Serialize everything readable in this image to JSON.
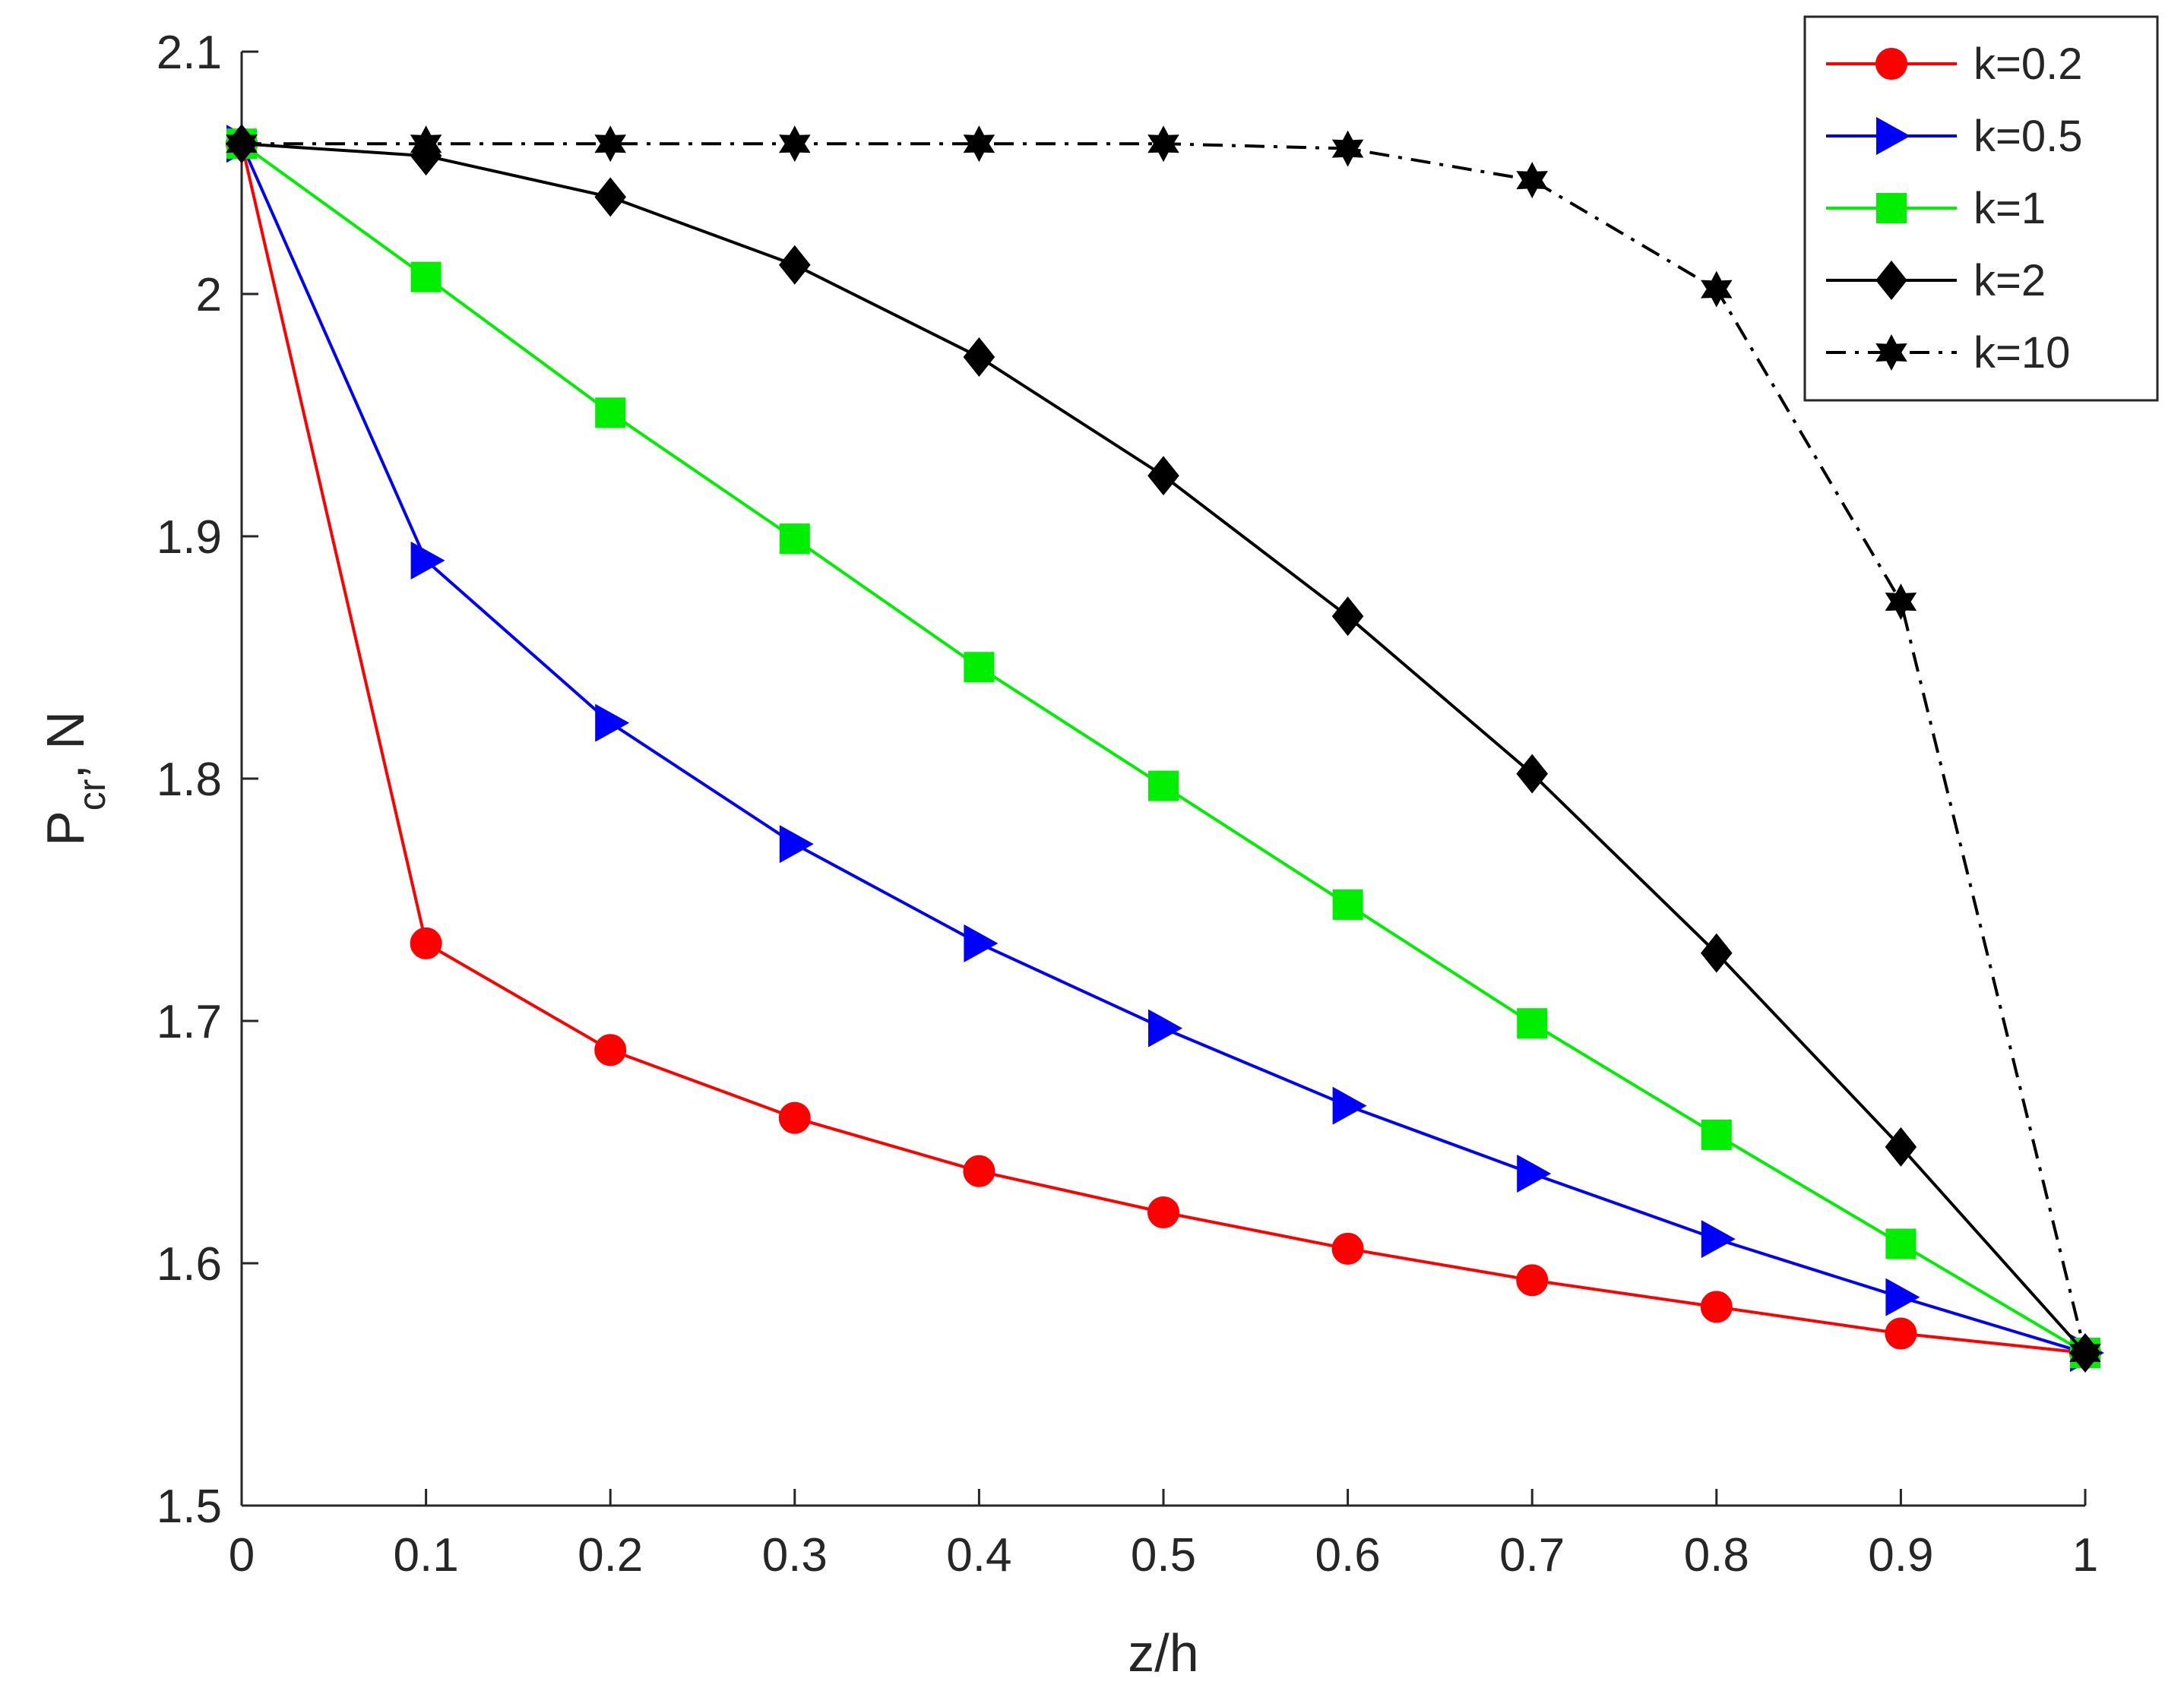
{
  "chart_data": {
    "type": "line",
    "xlabel": "z/h",
    "ylabel": {
      "main": "P",
      "sub": "cr",
      "suffix": ", N"
    },
    "xlim": [
      0,
      1
    ],
    "ylim": [
      1.5,
      2.1
    ],
    "xticks": [
      0,
      0.1,
      0.2,
      0.3,
      0.4,
      0.5,
      0.6,
      0.7,
      0.8,
      0.9,
      1
    ],
    "xtick_labels": [
      "0",
      "0.1",
      "0.2",
      "0.3",
      "0.4",
      "0.5",
      "0.6",
      "0.7",
      "0.8",
      "0.9",
      "1"
    ],
    "yticks": [
      1.5,
      1.6,
      1.7,
      1.8,
      1.9,
      2.0,
      2.1
    ],
    "ytick_labels": [
      "1.5",
      "1.6",
      "1.7",
      "1.8",
      "1.9",
      "2",
      "2.1"
    ],
    "grid": false,
    "legend_position": "top-right",
    "x": [
      0,
      0.1,
      0.2,
      0.3,
      0.4,
      0.5,
      0.6,
      0.7,
      0.8,
      0.9,
      1
    ],
    "series": [
      {
        "name": "k=0.2",
        "color": "#ff0000",
        "marker": "circle",
        "line": "solid",
        "values": [
          2.062,
          1.732,
          1.688,
          1.66,
          1.638,
          1.621,
          1.606,
          1.593,
          1.582,
          1.571,
          1.563
        ]
      },
      {
        "name": "k=0.5",
        "color": "#0000ff",
        "marker": "triangle-right",
        "line": "solid",
        "values": [
          2.062,
          1.89,
          1.823,
          1.773,
          1.732,
          1.697,
          1.665,
          1.637,
          1.61,
          1.586,
          1.563
        ]
      },
      {
        "name": "k=1",
        "color": "#00ee00",
        "marker": "square",
        "line": "solid",
        "values": [
          2.062,
          2.007,
          1.951,
          1.899,
          1.846,
          1.797,
          1.748,
          1.699,
          1.653,
          1.608,
          1.563
        ]
      },
      {
        "name": "k=2",
        "color": "#000000",
        "marker": "diamond",
        "line": "solid",
        "values": [
          2.062,
          2.057,
          2.04,
          2.012,
          1.974,
          1.925,
          1.867,
          1.802,
          1.728,
          1.648,
          1.563
        ]
      },
      {
        "name": "k=10",
        "color": "#000000",
        "marker": "hexagram",
        "line": "dashdot",
        "values": [
          2.062,
          2.062,
          2.062,
          2.062,
          2.062,
          2.062,
          2.06,
          2.047,
          2.002,
          1.873,
          1.563
        ]
      }
    ]
  }
}
